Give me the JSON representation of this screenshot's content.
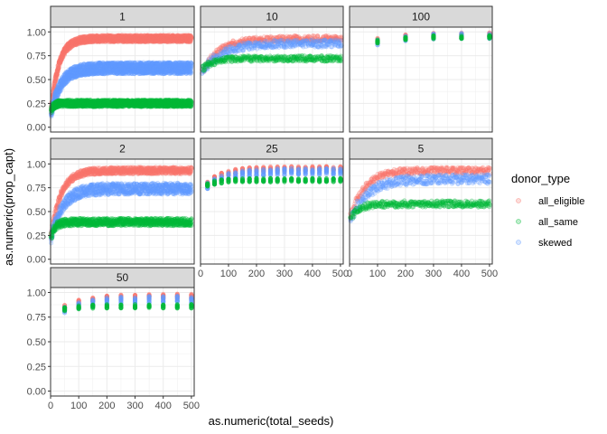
{
  "chart_data": {
    "type": "scatter",
    "title": "",
    "xlabel": "as.numeric(total_seeds)",
    "ylabel": "as.numeric(prop_capt)",
    "xlim": [
      0,
      510
    ],
    "ylim": [
      -0.05,
      1.05
    ],
    "x_ticks": [
      0,
      100,
      200,
      300,
      400,
      500
    ],
    "y_ticks": [
      "0.00",
      "0.25",
      "0.50",
      "0.75",
      "1.00"
    ],
    "grid": true,
    "point_alpha": 0.35,
    "legend": {
      "title": "donor_type",
      "placement": "right",
      "entries": [
        {
          "label": "all_eligible",
          "color": "#F8766D"
        },
        {
          "label": "all_same",
          "color": "#00BA38"
        },
        {
          "label": "skewed",
          "color": "#619CFF"
        }
      ]
    },
    "panels": [
      {
        "label": "1",
        "x_start": 2,
        "x_step": 1,
        "series": [
          {
            "name": "all_eligible",
            "color": "#F8766D",
            "start": 0.18,
            "end": 0.93,
            "k": 28,
            "spread": 0.07
          },
          {
            "name": "skewed",
            "color": "#619CFF",
            "start": 0.15,
            "end": 0.62,
            "k": 35,
            "spread": 0.12
          },
          {
            "name": "all_same",
            "color": "#00BA38",
            "start": 0.18,
            "end": 0.25,
            "k": 10,
            "spread": 0.07
          }
        ]
      },
      {
        "label": "10",
        "x_start": 10,
        "x_step": 10,
        "series": [
          {
            "name": "all_eligible",
            "color": "#F8766D",
            "start": 0.6,
            "end": 0.93,
            "k": 60,
            "spread": 0.06
          },
          {
            "name": "skewed",
            "color": "#619CFF",
            "start": 0.6,
            "end": 0.88,
            "k": 70,
            "spread": 0.08
          },
          {
            "name": "all_same",
            "color": "#00BA38",
            "start": 0.62,
            "end": 0.72,
            "k": 40,
            "spread": 0.06
          }
        ]
      },
      {
        "label": "100",
        "x_start": 100,
        "x_step": 100,
        "series": [
          {
            "name": "all_eligible",
            "color": "#F8766D",
            "start": 0.91,
            "end": 0.97,
            "k": 100,
            "spread": 0.05
          },
          {
            "name": "skewed",
            "color": "#619CFF",
            "start": 0.89,
            "end": 0.96,
            "k": 100,
            "spread": 0.06
          },
          {
            "name": "all_same",
            "color": "#00BA38",
            "start": 0.9,
            "end": 0.95,
            "k": 100,
            "spread": 0.04
          }
        ]
      },
      {
        "label": "2",
        "x_start": 2,
        "x_step": 2,
        "series": [
          {
            "name": "all_eligible",
            "color": "#F8766D",
            "start": 0.25,
            "end": 0.93,
            "k": 35,
            "spread": 0.07
          },
          {
            "name": "skewed",
            "color": "#619CFF",
            "start": 0.22,
            "end": 0.74,
            "k": 40,
            "spread": 0.12
          },
          {
            "name": "all_same",
            "color": "#00BA38",
            "start": 0.24,
            "end": 0.39,
            "k": 15,
            "spread": 0.08
          }
        ]
      },
      {
        "label": "25",
        "x_start": 25,
        "x_step": 25,
        "series": [
          {
            "name": "all_eligible",
            "color": "#F8766D",
            "start": 0.79,
            "end": 0.95,
            "k": 60,
            "spread": 0.05
          },
          {
            "name": "skewed",
            "color": "#619CFF",
            "start": 0.77,
            "end": 0.92,
            "k": 70,
            "spread": 0.07
          },
          {
            "name": "all_same",
            "color": "#00BA38",
            "start": 0.78,
            "end": 0.83,
            "k": 40,
            "spread": 0.04
          }
        ]
      },
      {
        "label": "5",
        "x_start": 5,
        "x_step": 5,
        "series": [
          {
            "name": "all_eligible",
            "color": "#F8766D",
            "start": 0.45,
            "end": 0.93,
            "k": 50,
            "spread": 0.07
          },
          {
            "name": "skewed",
            "color": "#619CFF",
            "start": 0.42,
            "end": 0.84,
            "k": 60,
            "spread": 0.1
          },
          {
            "name": "all_same",
            "color": "#00BA38",
            "start": 0.43,
            "end": 0.58,
            "k": 30,
            "spread": 0.07
          }
        ]
      },
      {
        "label": "50",
        "x_start": 50,
        "x_step": 50,
        "series": [
          {
            "name": "all_eligible",
            "color": "#F8766D",
            "start": 0.85,
            "end": 0.96,
            "k": 80,
            "spread": 0.05
          },
          {
            "name": "skewed",
            "color": "#619CFF",
            "start": 0.82,
            "end": 0.93,
            "k": 80,
            "spread": 0.07
          },
          {
            "name": "all_same",
            "color": "#00BA38",
            "start": 0.83,
            "end": 0.86,
            "k": 50,
            "spread": 0.04
          }
        ]
      }
    ]
  }
}
